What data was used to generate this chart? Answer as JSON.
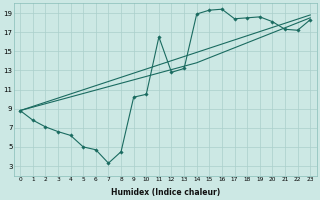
{
  "xlabel": "Humidex (Indice chaleur)",
  "bg_color": "#cce8e4",
  "grid_color": "#aacfcb",
  "line_color": "#1a6b60",
  "xlim": [
    -0.5,
    23.5
  ],
  "ylim": [
    2.0,
    20.0
  ],
  "xticks": [
    0,
    1,
    2,
    3,
    4,
    5,
    6,
    7,
    8,
    9,
    10,
    11,
    12,
    13,
    14,
    15,
    16,
    17,
    18,
    19,
    20,
    21,
    22,
    23
  ],
  "yticks": [
    3,
    5,
    7,
    9,
    11,
    13,
    15,
    17,
    19
  ],
  "line1_x": [
    0,
    1,
    2,
    3,
    4,
    5,
    6,
    7,
    8,
    9,
    10,
    11,
    12,
    13,
    14,
    15,
    16,
    17,
    18,
    19,
    20,
    21,
    22,
    23
  ],
  "line1_y": [
    8.8,
    7.8,
    7.1,
    6.6,
    6.2,
    5.0,
    4.7,
    3.3,
    4.5,
    10.2,
    10.5,
    16.5,
    12.8,
    13.2,
    18.9,
    19.3,
    19.4,
    18.4,
    18.5,
    18.6,
    18.1,
    17.3,
    17.2,
    18.3
  ],
  "line2_x": [
    0,
    23
  ],
  "line2_y": [
    8.8,
    18.8
  ],
  "line3_x": [
    0,
    14,
    23
  ],
  "line3_y": [
    8.8,
    13.8,
    18.5
  ]
}
